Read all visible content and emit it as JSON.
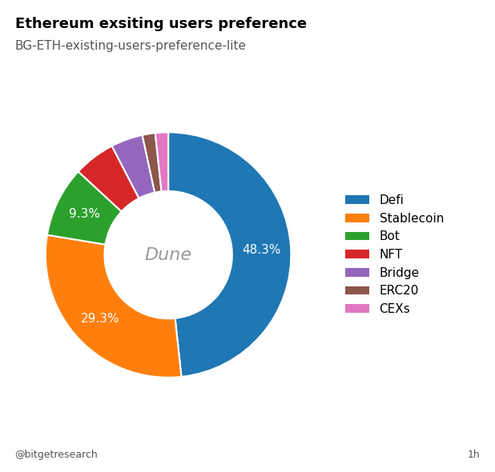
{
  "chart_data": {
    "type": "pie",
    "title": "Ethereum exsiting users preference",
    "subtitle": "BG-ETH-existing-users-preference-lite",
    "categories": [
      "Defi",
      "Stablecoin",
      "Bot",
      "NFT",
      "Bridge",
      "ERC20",
      "CEXs"
    ],
    "values": [
      48.3,
      29.3,
      9.3,
      5.5,
      4.2,
      1.7,
      1.7
    ],
    "value_labels": [
      "48.3%",
      "29.3%",
      "9.3%",
      null,
      null,
      null,
      null
    ],
    "legend": "center left",
    "annotations": [
      "Dune",
      "@bitgetresearch",
      "1h"
    ]
  }
}
